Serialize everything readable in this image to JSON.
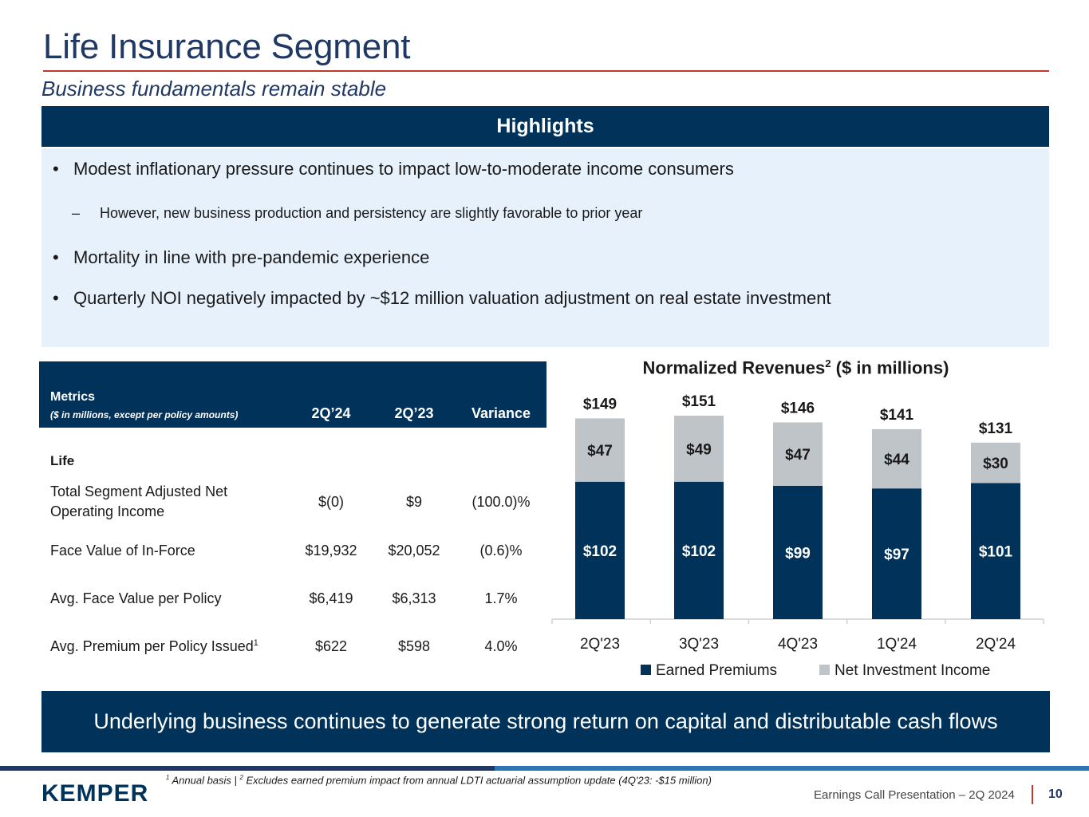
{
  "header": {
    "title": "Life Insurance Segment",
    "subtitle": "Business fundamentals remain stable"
  },
  "highlights": {
    "heading": "Highlights",
    "bullets": [
      "Modest inflationary pressure continues to impact low-to-moderate income consumers",
      "Mortality in line with pre-pandemic experience",
      "Quarterly NOI negatively impacted by ~$12 million valuation adjustment on real estate investment"
    ],
    "sub_bullet": "However, new business production and persistency are slightly favorable to prior year",
    "bullet_glyph": "•",
    "dash_glyph": "–"
  },
  "metrics": {
    "heading": "Metrics",
    "subheading": "($ in millions, except per policy amounts)",
    "columns": [
      "2Q’24",
      "2Q’23",
      "Variance"
    ],
    "section": "Life",
    "rows": [
      {
        "label_line1": "Total Segment Adjusted Net",
        "label_line2": "Operating Income",
        "c1": "$(0)",
        "c2": "$9",
        "c3": "(100.0)%"
      },
      {
        "label": "Face Value of In-Force",
        "c1": "$19,932",
        "c2": "$20,052",
        "c3": "(0.6)%"
      },
      {
        "label": "Avg. Face Value per Policy",
        "c1": "$6,419",
        "c2": "$6,313",
        "c3": "1.7%"
      },
      {
        "label": "Avg. Premium per Policy Issued",
        "sup": "1",
        "c1": "$622",
        "c2": "$598",
        "c3": "4.0%"
      }
    ]
  },
  "chart_data": {
    "type": "bar",
    "stacked": true,
    "title": "Normalized Revenues",
    "title_sup": "2",
    "title_suffix": " ($ in millions)",
    "categories": [
      "2Q'23",
      "3Q'23",
      "4Q'23",
      "1Q'24",
      "2Q'24"
    ],
    "series": [
      {
        "name": "Earned Premiums",
        "values": [
          102,
          102,
          99,
          97,
          101
        ],
        "labels": [
          "$102",
          "$102",
          "$99",
          "$97",
          "$101"
        ],
        "color": "#00325a"
      },
      {
        "name": "Net Investment Income",
        "values": [
          47,
          49,
          47,
          44,
          30
        ],
        "labels": [
          "$47",
          "$49",
          "$47",
          "$44",
          "$30"
        ],
        "color": "#bfc4c9"
      }
    ],
    "totals": [
      "$149",
      "$151",
      "$146",
      "$141",
      "$131"
    ],
    "legend_position": "bottom"
  },
  "banner": {
    "text": "Underlying business continues to generate strong return on capital and distributable cash flows"
  },
  "footer": {
    "logo": "KEMPER",
    "fn1_sup": "1",
    "fn1": " Annual basis  |  ",
    "fn2_sup": "2",
    "fn2": " Excludes earned premium impact from annual LDTI actuarial assumption update (4Q'23: -$15 million)",
    "presentation": "Earnings Call Presentation – 2Q 2024",
    "page": "10"
  }
}
